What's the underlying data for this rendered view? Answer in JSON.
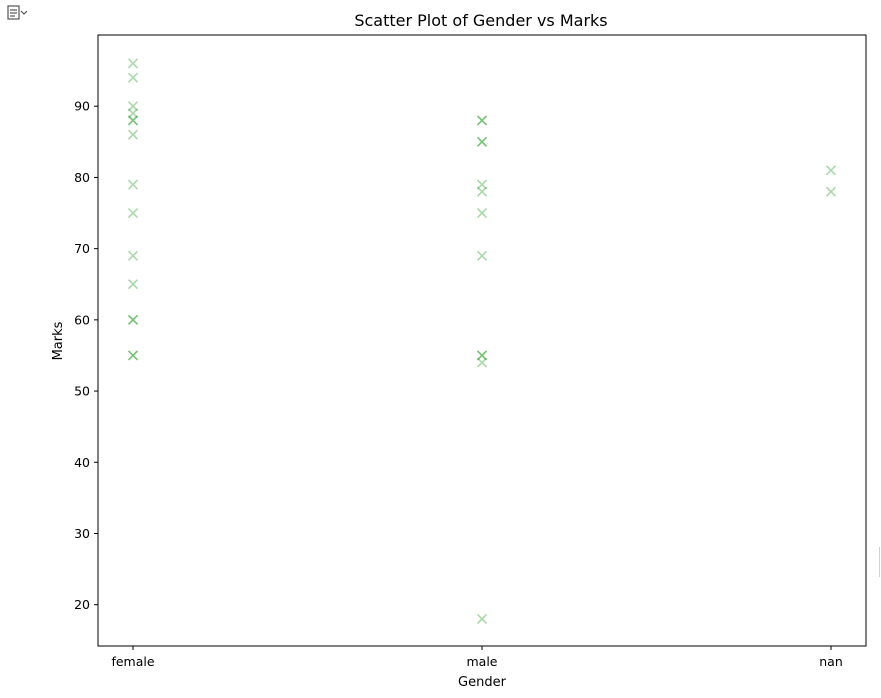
{
  "chart_data": {
    "type": "scatter",
    "title": "Scatter Plot of Gender vs Marks",
    "xlabel": "Gender",
    "ylabel": "Marks",
    "categories": [
      "female",
      "male",
      "nan"
    ],
    "ylim": [
      14.2,
      100
    ],
    "yticks": [
      20,
      30,
      40,
      50,
      60,
      70,
      80,
      90
    ],
    "grid": false,
    "marker": "x",
    "color": "#2ca02c",
    "points": [
      {
        "x": "female",
        "y": 96
      },
      {
        "x": "female",
        "y": 94
      },
      {
        "x": "female",
        "y": 90
      },
      {
        "x": "female",
        "y": 89
      },
      {
        "x": "female",
        "y": 88
      },
      {
        "x": "female",
        "y": 88
      },
      {
        "x": "female",
        "y": 86
      },
      {
        "x": "female",
        "y": 79
      },
      {
        "x": "female",
        "y": 75
      },
      {
        "x": "female",
        "y": 69
      },
      {
        "x": "female",
        "y": 65
      },
      {
        "x": "female",
        "y": 60
      },
      {
        "x": "female",
        "y": 60
      },
      {
        "x": "female",
        "y": 55
      },
      {
        "x": "female",
        "y": 55
      },
      {
        "x": "male",
        "y": 88
      },
      {
        "x": "male",
        "y": 88
      },
      {
        "x": "male",
        "y": 85
      },
      {
        "x": "male",
        "y": 85
      },
      {
        "x": "male",
        "y": 79
      },
      {
        "x": "male",
        "y": 78
      },
      {
        "x": "male",
        "y": 75
      },
      {
        "x": "male",
        "y": 69
      },
      {
        "x": "male",
        "y": 55
      },
      {
        "x": "male",
        "y": 55
      },
      {
        "x": "male",
        "y": 54
      },
      {
        "x": "male",
        "y": 18
      },
      {
        "x": "nan",
        "y": 81
      },
      {
        "x": "nan",
        "y": 78
      }
    ]
  }
}
